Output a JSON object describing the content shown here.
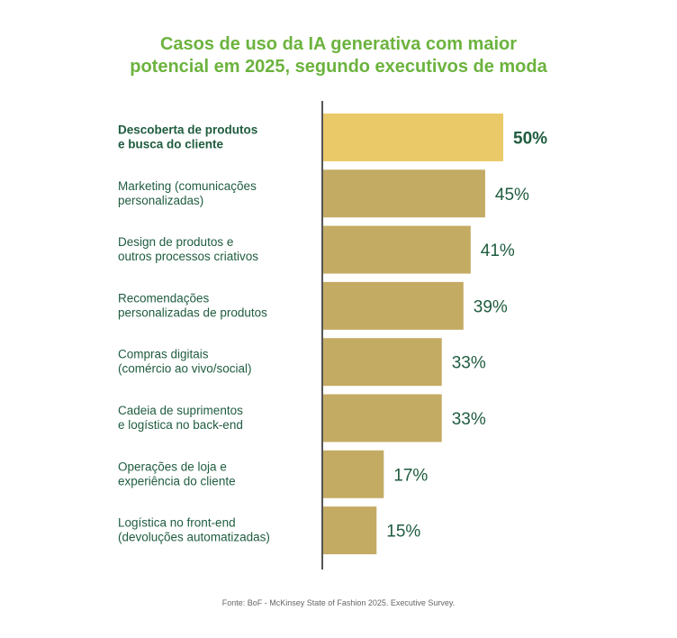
{
  "title": {
    "line1": "Casos de uso da IA generativa com maior",
    "line2": "potencial em 2025, segundo executivos de moda"
  },
  "source": "Fonte: BoF - McKinsey State of Fashion 2025. Executive Survey.",
  "colors": {
    "title": "#6cb33e",
    "label": "#1f5c3f",
    "bar": "#c4ab64",
    "bar_highlight": "#eac969",
    "axis": "#555555"
  },
  "chart_data": {
    "type": "bar",
    "orientation": "horizontal",
    "value_format": "percent",
    "highlight_index": 0,
    "xlim": [
      0,
      50
    ],
    "categories": [
      [
        "Descoberta de produtos",
        "e busca do cliente"
      ],
      [
        "Marketing (comunicações",
        "personalizadas)"
      ],
      [
        "Design de produtos e",
        "outros processos criativos"
      ],
      [
        "Recomendações",
        "personalizadas de produtos"
      ],
      [
        "Compras digitais",
        "(comércio ao vivo/social)"
      ],
      [
        "Cadeia de suprimentos",
        "e logística no back-end"
      ],
      [
        "Operações de loja e",
        "experiência do cliente"
      ],
      [
        "Logística no front-end",
        "(devoluções automatizadas)"
      ]
    ],
    "values": [
      50,
      45,
      41,
      39,
      33,
      33,
      17,
      15
    ],
    "value_labels": [
      "50%",
      "45%",
      "41%",
      "39%",
      "33%",
      "33%",
      "17%",
      "15%"
    ]
  }
}
